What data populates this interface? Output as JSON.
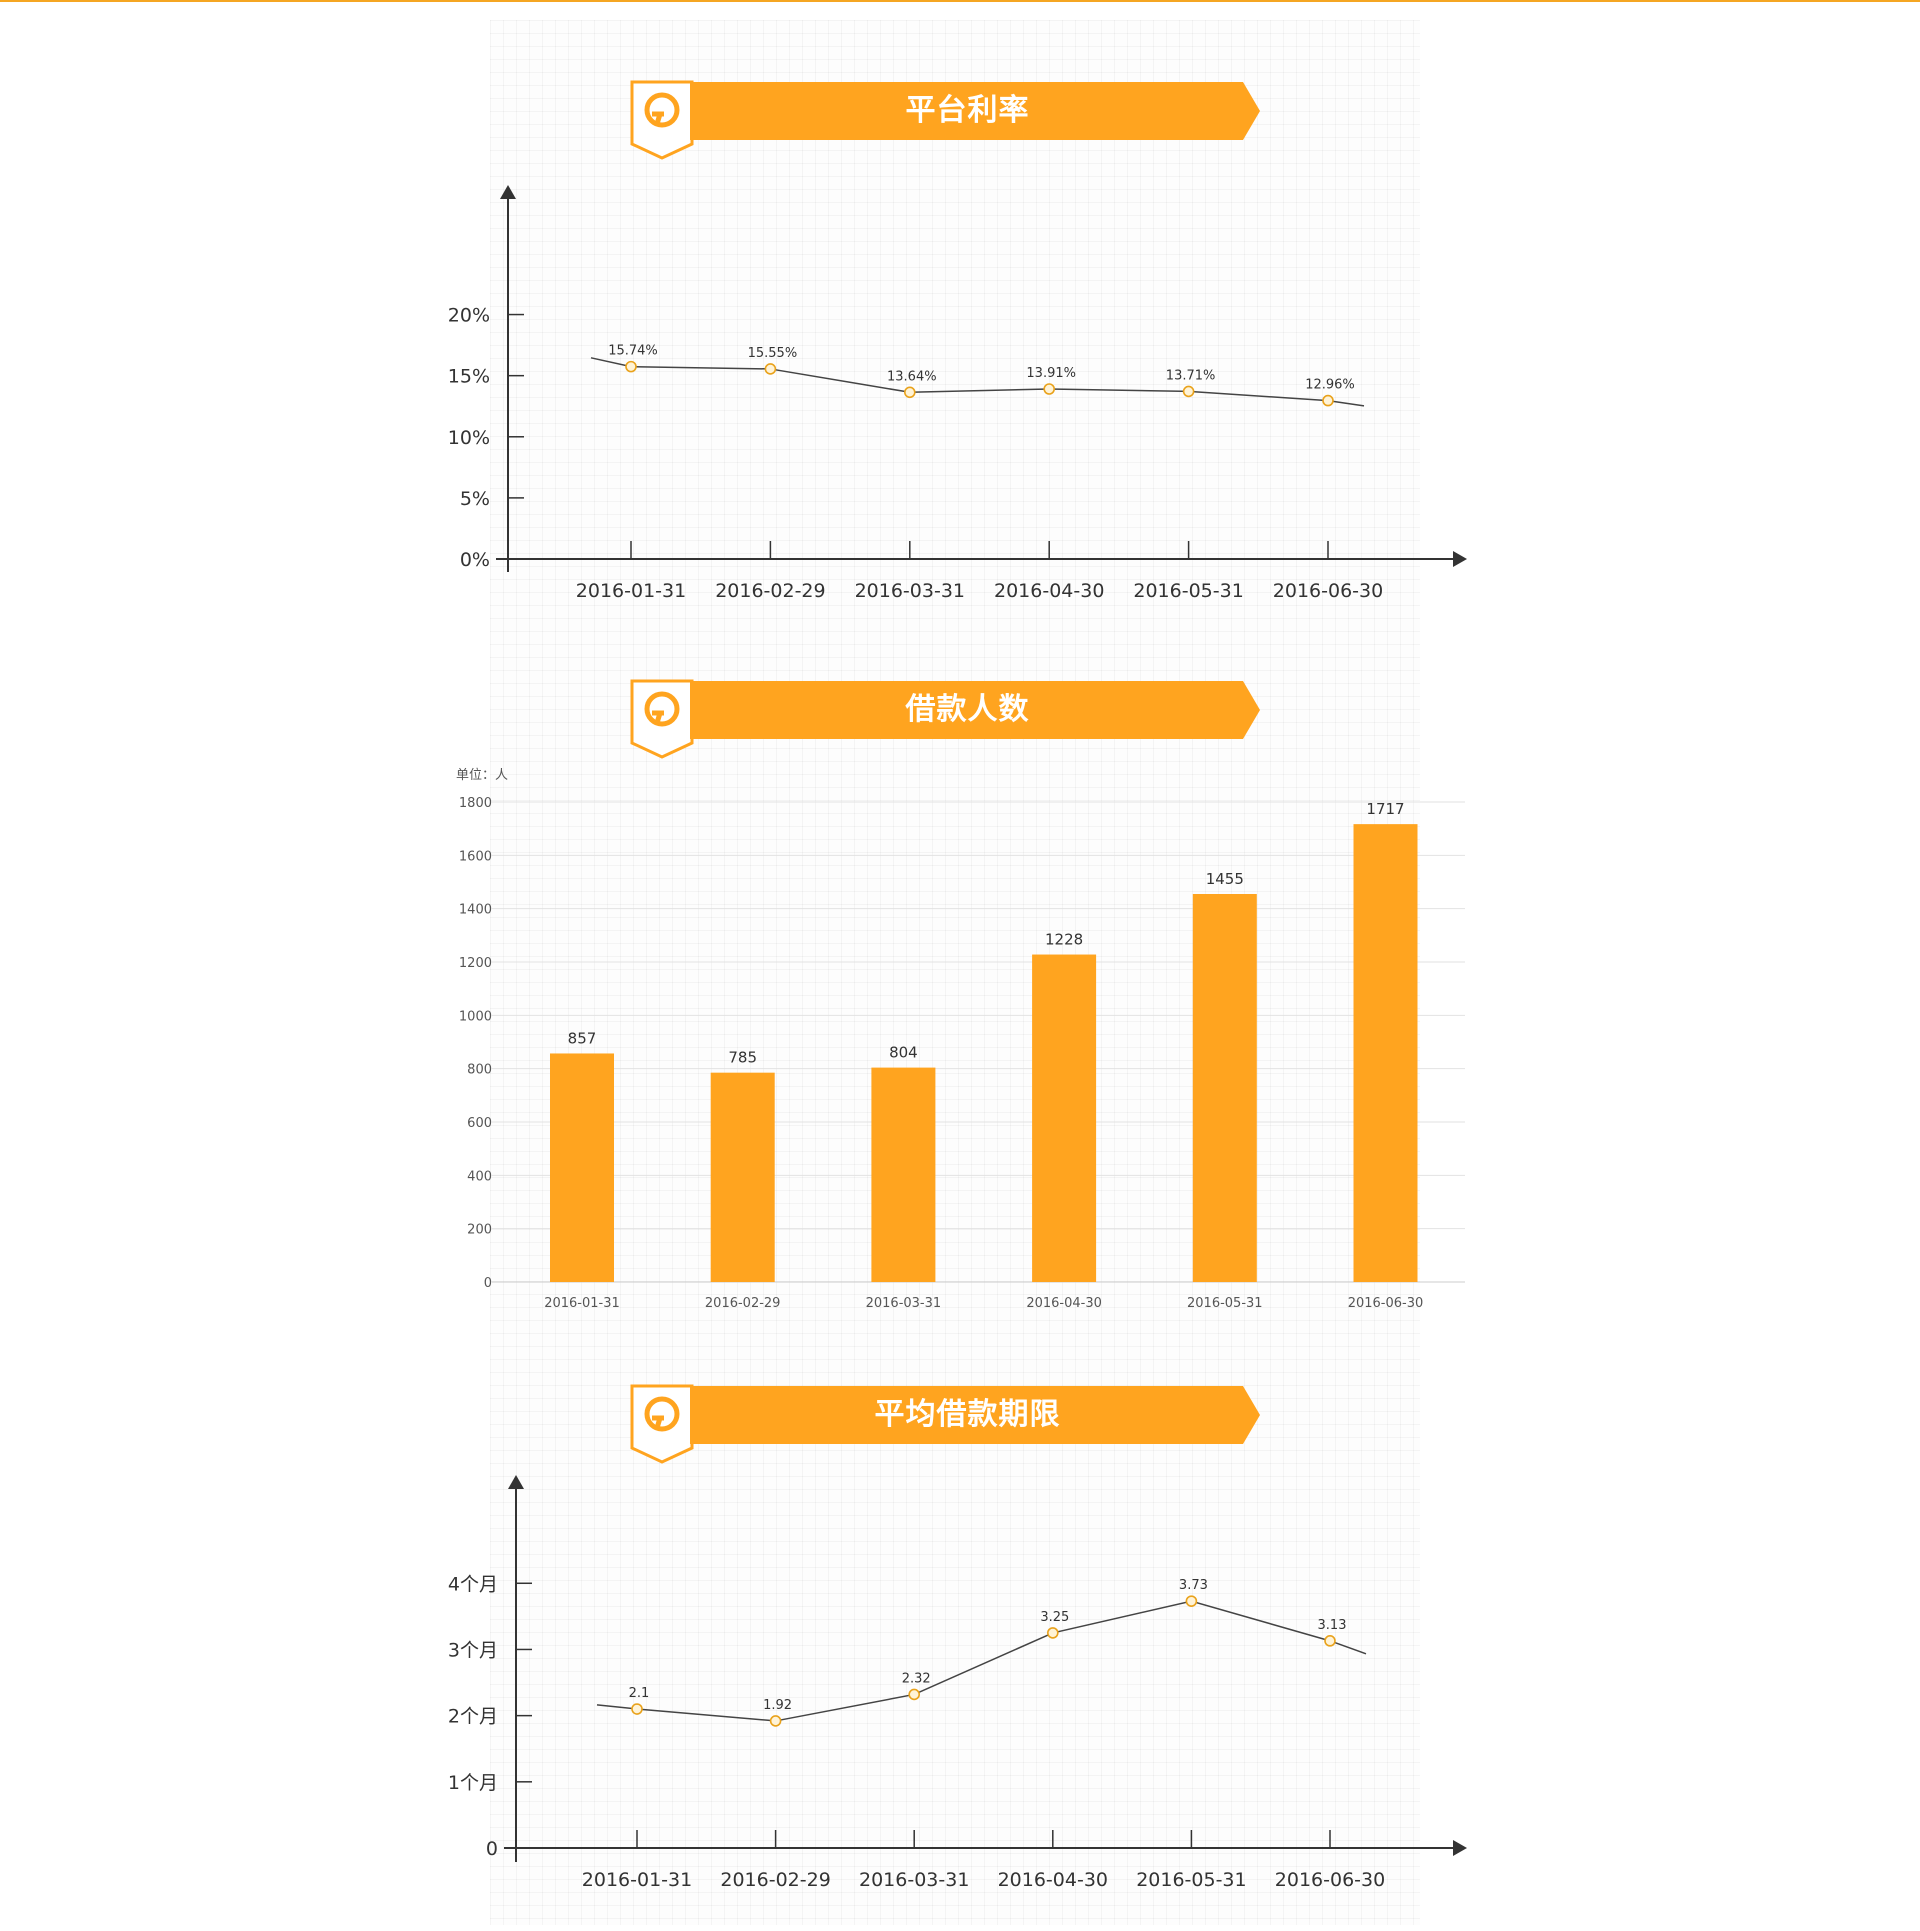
{
  "colors": {
    "accent": "#ffa41f",
    "line": "#444444",
    "point_fill": "#fff3d6",
    "point_stroke": "#e9a21b"
  },
  "panels": [
    {
      "title": "平台利率",
      "icon": "shield-logo-icon"
    },
    {
      "title": "借款人数",
      "icon": "shield-logo-icon"
    },
    {
      "title": "平均借款期限",
      "icon": "shield-logo-icon"
    }
  ],
  "unit_label": "单位：人",
  "chart_data": [
    {
      "type": "line",
      "title": "平台利率",
      "categories": [
        "2016-01-31",
        "2016-02-29",
        "2016-03-31",
        "2016-04-30",
        "2016-05-31",
        "2016-06-30"
      ],
      "values": [
        15.74,
        15.55,
        13.64,
        13.91,
        13.71,
        12.96
      ],
      "value_labels": [
        "15.74%",
        "15.55%",
        "13.64%",
        "13.91%",
        "13.71%",
        "12.96%"
      ],
      "y_ticks": [
        0,
        5,
        10,
        15,
        20
      ],
      "y_tick_labels": [
        "0%",
        "5%",
        "10%",
        "15%",
        "20%"
      ],
      "ylim": [
        0,
        27
      ],
      "grid": false
    },
    {
      "type": "bar",
      "title": "借款人数",
      "categories": [
        "2016-01-31",
        "2016-02-29",
        "2016-03-31",
        "2016-04-30",
        "2016-05-31",
        "2016-06-30"
      ],
      "values": [
        857,
        785,
        804,
        1228,
        1455,
        1717
      ],
      "value_labels": [
        "857",
        "785",
        "804",
        "1228",
        "1455",
        "1717"
      ],
      "y_ticks": [
        0,
        200,
        400,
        600,
        800,
        1000,
        1200,
        1400,
        1600,
        1800
      ],
      "y_tick_labels": [
        "0",
        "200",
        "400",
        "600",
        "800",
        "1000",
        "1200",
        "1400",
        "1600",
        "1800"
      ],
      "ylim": [
        0,
        1800
      ],
      "grid": true
    },
    {
      "type": "line",
      "title": "平均借款期限",
      "categories": [
        "2016-01-31",
        "2016-02-29",
        "2016-03-31",
        "2016-04-30",
        "2016-05-31",
        "2016-06-30"
      ],
      "values": [
        2.1,
        1.92,
        2.32,
        3.25,
        3.73,
        3.13
      ],
      "value_labels": [
        "2.1",
        "1.92",
        "2.32",
        "3.25",
        "3.73",
        "3.13"
      ],
      "y_ticks": [
        0,
        1,
        2,
        3,
        4
      ],
      "y_tick_labels": [
        "0",
        "1个月",
        "2个月",
        "3个月",
        "4个月"
      ],
      "ylim": [
        0,
        5.5
      ],
      "grid": false
    }
  ]
}
